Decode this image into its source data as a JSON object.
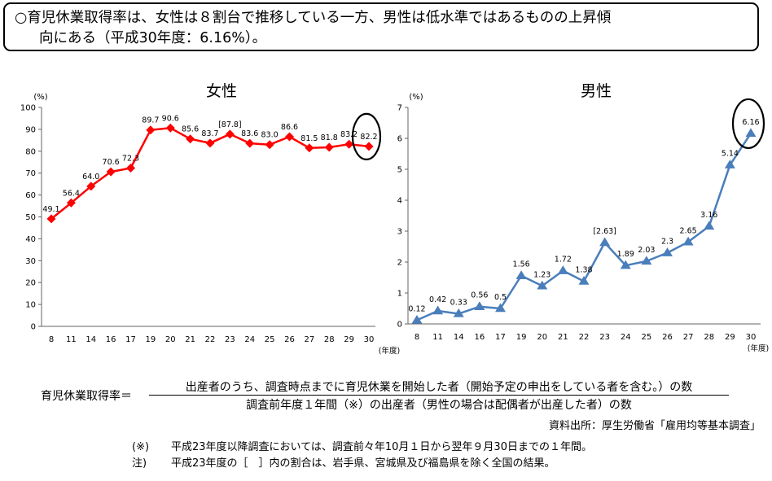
{
  "headline": {
    "line1": "○育児休業取得率は、女性は８割台で推移している一方、男性は低水準ではあるものの上昇傾",
    "line2": "向にある（平成30年度：6.16%）。"
  },
  "chart_data": [
    {
      "type": "line",
      "title": "女性",
      "y_unit": "(%)",
      "x_unit": "(年度)",
      "ylim": [
        0,
        100
      ],
      "y_ticks": [
        0,
        10,
        20,
        30,
        40,
        50,
        60,
        70,
        80,
        90,
        100
      ],
      "x": [
        "8",
        "11",
        "14",
        "16",
        "17",
        "19",
        "20",
        "21",
        "22",
        "23",
        "24",
        "25",
        "26",
        "27",
        "28",
        "29",
        "30"
      ],
      "values": [
        49.1,
        56.4,
        64.0,
        70.6,
        72.3,
        89.7,
        90.6,
        85.6,
        83.7,
        87.8,
        83.6,
        83.0,
        86.6,
        81.5,
        81.8,
        83.2,
        82.2
      ],
      "labels": [
        "49.1",
        "56.4",
        "64.0",
        "70.6",
        "72.3",
        "89.7",
        "90.6",
        "85.6",
        "83.7",
        "[87.8]",
        "83.6",
        "83.0",
        "86.6",
        "81.5",
        "81.8",
        "83.2",
        "82.2"
      ],
      "color": "#ff0000",
      "marker": "diamond",
      "grid": false,
      "highlight_last": true
    },
    {
      "type": "line",
      "title": "男性",
      "y_unit": "(%)",
      "x_unit": "(年度)",
      "ylim": [
        0,
        7
      ],
      "y_ticks": [
        0,
        1,
        2,
        3,
        4,
        5,
        6,
        7
      ],
      "x": [
        "8",
        "11",
        "14",
        "16",
        "17",
        "19",
        "20",
        "21",
        "22",
        "23",
        "24",
        "25",
        "26",
        "27",
        "28",
        "29",
        "30"
      ],
      "values": [
        0.12,
        0.42,
        0.33,
        0.56,
        0.5,
        1.56,
        1.23,
        1.72,
        1.38,
        2.63,
        1.89,
        2.03,
        2.3,
        2.65,
        3.16,
        5.14,
        6.16
      ],
      "labels": [
        "0.12",
        "0.42",
        "0.33",
        "0.56",
        "0.5",
        "1.56",
        "1.23",
        "1.72",
        "1.38",
        "[2.63]",
        "1.89",
        "2.03",
        "2.3",
        "2.65",
        "3.16",
        "5.14",
        "6.16"
      ],
      "color": "#4a7ebb",
      "marker": "triangle",
      "grid": false,
      "highlight_last": true
    }
  ],
  "formula": {
    "lhs": "育児休業取得率＝",
    "numerator": "出産者のうち、調査時点までに育児休業を開始した者（開始予定の申出をしている者を含む。）の数",
    "denominator": "調査前年度１年間（※）の出産者（男性の場合は配偶者が出産した者）の数"
  },
  "source": "資料出所：厚生労働省「雇用均等基本調査」",
  "notes": [
    {
      "mark": "(※)",
      "text": "平成23年度以降調査においては、調査前々年10月１日から翌年９月30日までの１年間。"
    },
    {
      "mark": "注)",
      "text": "平成23年度の［　］内の割合は、岩手県、宮城県及び福島県を除く全国の結果。"
    }
  ]
}
